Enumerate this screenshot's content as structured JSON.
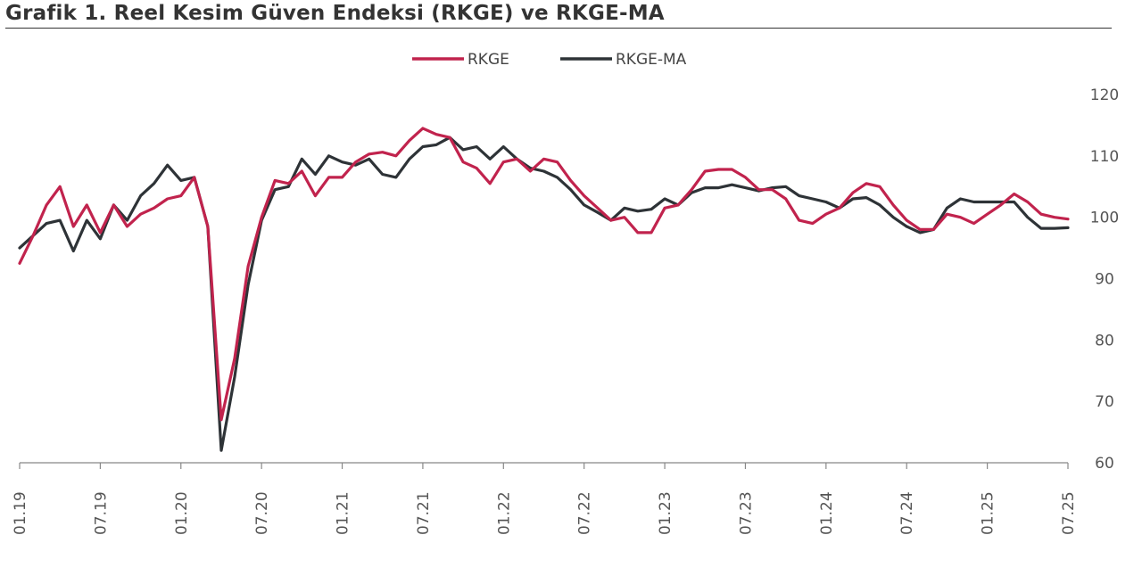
{
  "title": "Grafik 1. Reel Kesim Güven Endeksi (RKGE) ve RKGE-MA",
  "colors": {
    "rkge": "#c1234d",
    "rkge_ma": "#2e3337",
    "axis": "#888888",
    "text": "#555555"
  },
  "chart_data": {
    "type": "line",
    "title": "Grafik 1. Reel Kesim Güven Endeksi (RKGE) ve RKGE-MA",
    "xlabel": "",
    "ylabel": "",
    "ylim": [
      60,
      120
    ],
    "yticks": [
      60,
      70,
      80,
      90,
      100,
      110,
      120
    ],
    "y_axis_side": "right",
    "legend_position": "top-center",
    "grid": false,
    "x_start": "01.19",
    "x_end": "07.25",
    "x_tick_labels": [
      "01.19",
      "07.19",
      "01.20",
      "07.20",
      "01.21",
      "07.21",
      "01.22",
      "07.22",
      "01.23",
      "07.23",
      "01.24",
      "07.24",
      "01.25",
      "07.25"
    ],
    "series": [
      {
        "name": "RKGE",
        "color": "#c1234d",
        "values": [
          92.5,
          97,
          102,
          105,
          98.5,
          102,
          97.5,
          102,
          98.5,
          100.5,
          101.5,
          103,
          103.5,
          106.5,
          98.5,
          67,
          77,
          92,
          100,
          106,
          105.5,
          107.5,
          103.5,
          106.5,
          106.5,
          109,
          110.3,
          110.6,
          110,
          112.5,
          114.5,
          113.5,
          113,
          109,
          108,
          105.5,
          109,
          109.5,
          107.5,
          109.5,
          109,
          106,
          103.5,
          101.5,
          99.5,
          100,
          97.5,
          97.5,
          101.5,
          102,
          104.5,
          107.5,
          107.8,
          107.8,
          106.5,
          104.5,
          104.5,
          103,
          99.5,
          99,
          100.5,
          101.5,
          104,
          105.5,
          105,
          102,
          99.5,
          98,
          98,
          100.5,
          100,
          99,
          100.5,
          102,
          103.8,
          102.5,
          100.5,
          100,
          99.7
        ]
      },
      {
        "name": "RKGE-MA",
        "color": "#2e3337",
        "values": [
          95,
          97,
          99,
          99.5,
          94.5,
          99.5,
          96.5,
          102,
          99.5,
          103.5,
          105.5,
          108.5,
          106,
          106.5,
          98.5,
          62,
          74,
          89,
          99.5,
          104.5,
          105,
          109.5,
          107,
          110,
          109,
          108.5,
          109.5,
          107,
          106.5,
          109.5,
          111.5,
          111.8,
          113,
          111,
          111.5,
          109.5,
          111.5,
          109.5,
          108,
          107.5,
          106.5,
          104.5,
          102,
          100.8,
          99.5,
          101.5,
          101,
          101.3,
          103,
          102,
          104,
          104.8,
          104.8,
          105.3,
          104.8,
          104.3,
          104.8,
          105,
          103.5,
          103,
          102.5,
          101.5,
          103,
          103.2,
          102,
          100,
          98.5,
          97.5,
          98,
          101.5,
          103,
          102.5,
          102.5,
          102.5,
          102.5,
          100,
          98.2,
          98.2,
          98.3
        ]
      }
    ]
  }
}
